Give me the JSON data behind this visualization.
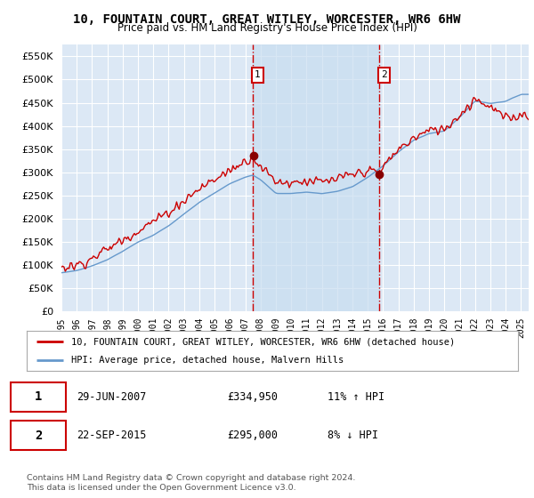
{
  "title": "10, FOUNTAIN COURT, GREAT WITLEY, WORCESTER, WR6 6HW",
  "subtitle": "Price paid vs. HM Land Registry's House Price Index (HPI)",
  "ytick_values": [
    0,
    50000,
    100000,
    150000,
    200000,
    250000,
    300000,
    350000,
    400000,
    450000,
    500000,
    550000
  ],
  "ylim": [
    0,
    575000
  ],
  "background_color": "#ffffff",
  "plot_bg_color": "#dce8f5",
  "grid_color": "#ffffff",
  "red_line_color": "#cc0000",
  "blue_line_color": "#6699cc",
  "shade_color": "#c8ddf0",
  "vline_color": "#cc0000",
  "legend_red": "10, FOUNTAIN COURT, GREAT WITLEY, WORCESTER, WR6 6HW (detached house)",
  "legend_blue": "HPI: Average price, detached house, Malvern Hills",
  "table_row1": [
    "1",
    "29-JUN-2007",
    "£334,950",
    "11% ↑ HPI"
  ],
  "table_row2": [
    "2",
    "22-SEP-2015",
    "£295,000",
    "8% ↓ HPI"
  ],
  "footnote": "Contains HM Land Registry data © Crown copyright and database right 2024.\nThis data is licensed under the Open Government Licence v3.0.",
  "purchase1_year": 2007.5,
  "purchase1_value": 334950,
  "purchase2_year": 2015.75,
  "purchase2_value": 295000,
  "xstart": 1995,
  "xend": 2025.5
}
